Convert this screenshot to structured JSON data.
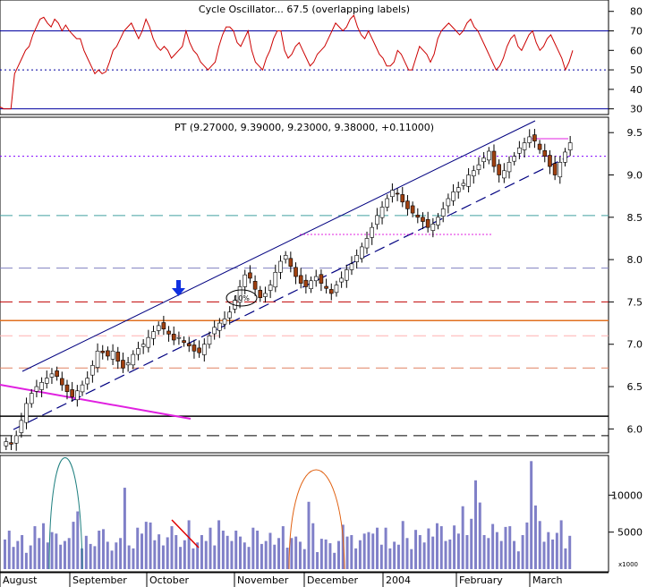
{
  "chart_data": [
    {
      "type": "line",
      "panel": "rsi",
      "title": "Cycle Oscillator... 67.5 (overlapping labels)",
      "yticks": [
        30,
        40,
        50,
        60,
        70,
        80
      ],
      "ylim": [
        28,
        84
      ],
      "reference_lines": [
        {
          "y": 70,
          "style": "solid",
          "color": "#0000a0"
        },
        {
          "y": 50,
          "style": "dotted",
          "color": "#0000a0"
        },
        {
          "y": 30,
          "style": "solid",
          "color": "#0000a0"
        }
      ],
      "series": [
        {
          "color": "#cc0000",
          "values": [
            31,
            30,
            30,
            30,
            48,
            52,
            56,
            60,
            62,
            68,
            72,
            76,
            77,
            74,
            72,
            76,
            74,
            70,
            73,
            70,
            68,
            66,
            66,
            60,
            56,
            52,
            48,
            50,
            48,
            49,
            54,
            60,
            62,
            66,
            70,
            72,
            74,
            70,
            66,
            70,
            76,
            72,
            66,
            62,
            60,
            62,
            60,
            56,
            58,
            60,
            62,
            70,
            64,
            60,
            58,
            54,
            52,
            50,
            52,
            54,
            62,
            68,
            72,
            72,
            70,
            64,
            62,
            66,
            70,
            60,
            54,
            52,
            50,
            56,
            60,
            66,
            70,
            70,
            60,
            56,
            58,
            62,
            64,
            60,
            56,
            52,
            54,
            58,
            60,
            62,
            66,
            70,
            74,
            72,
            70,
            72,
            76,
            78,
            72,
            68,
            66,
            70,
            66,
            62,
            58,
            56,
            52,
            52,
            54,
            60,
            58,
            54,
            50,
            50,
            56,
            62,
            60,
            58,
            54,
            58,
            66,
            70,
            72,
            74,
            72,
            70,
            68,
            70,
            74,
            76,
            72,
            70,
            66,
            62,
            58,
            54,
            50,
            52,
            56,
            62,
            66,
            68,
            62,
            60,
            64,
            68,
            70,
            64,
            60,
            62,
            66,
            68,
            64,
            60,
            56,
            50,
            54,
            60
          ]
        }
      ]
    },
    {
      "type": "candlestick",
      "panel": "price",
      "title": "PT (9.27000, 9.39000, 9.23000, 9.38000, +0.11000)",
      "yticks": [
        6.0,
        6.5,
        7.0,
        7.5,
        8.0,
        8.5,
        9.0,
        9.5
      ],
      "ylim": [
        5.75,
        9.65
      ],
      "close": [
        5.85,
        5.82,
        5.92,
        6.1,
        6.3,
        6.42,
        6.5,
        6.55,
        6.6,
        6.65,
        6.62,
        6.52,
        6.44,
        6.38,
        6.45,
        6.52,
        6.6,
        6.75,
        6.92,
        6.9,
        6.86,
        6.92,
        6.8,
        6.72,
        6.78,
        6.88,
        6.95,
        7.0,
        7.08,
        7.15,
        7.22,
        7.18,
        7.12,
        7.05,
        7.08,
        7.02,
        6.98,
        6.92,
        6.9,
        7.0,
        7.1,
        7.2,
        7.25,
        7.3,
        7.38,
        7.52,
        7.68,
        7.82,
        7.78,
        7.65,
        7.55,
        7.6,
        7.7,
        7.85,
        7.98,
        8.05,
        7.92,
        7.8,
        7.72,
        7.68,
        7.75,
        7.8,
        7.72,
        7.66,
        7.6,
        7.7,
        7.78,
        7.88,
        7.95,
        8.05,
        8.15,
        8.25,
        8.38,
        8.52,
        8.62,
        8.72,
        8.82,
        8.78,
        8.68,
        8.6,
        8.55,
        8.5,
        8.45,
        8.38,
        8.42,
        8.5,
        8.6,
        8.72,
        8.8,
        8.85,
        8.9,
        9.0,
        9.05,
        9.12,
        9.2,
        9.28,
        9.1,
        9.0,
        9.05,
        9.15,
        9.22,
        9.32,
        9.38,
        9.45,
        9.4,
        9.3,
        9.22,
        9.1,
        9.0,
        9.15,
        9.27,
        9.38
      ],
      "reference_lines": [
        {
          "y": 9.22,
          "style": "dotted",
          "color": "#8000ff"
        },
        {
          "y": 8.52,
          "style": "dashed",
          "color": "#40a0a0"
        },
        {
          "y": 7.9,
          "style": "dashed",
          "color": "#8080c0"
        },
        {
          "y": 7.5,
          "style": "dashed",
          "color": "#c00000"
        },
        {
          "y": 7.28,
          "style": "solid",
          "color": "#e07020"
        },
        {
          "y": 7.1,
          "style": "dashed",
          "color": "#ffb0b0"
        },
        {
          "y": 6.72,
          "style": "dashed",
          "color": "#e08060"
        },
        {
          "y": 6.15,
          "style": "solid",
          "color": "#000000"
        },
        {
          "y": 5.92,
          "style": "dashed",
          "color": "#000000"
        }
      ]
    },
    {
      "type": "bar",
      "panel": "volume",
      "yticks": [
        5000,
        10000
      ],
      "ylim": [
        0,
        15000
      ],
      "unit_label": "x1000",
      "values": [
        4000,
        5200,
        3000,
        3800,
        4600,
        2200,
        3200,
        5800,
        4200,
        6200,
        3600,
        5000,
        4800,
        3300,
        3800,
        4200,
        6400,
        7800,
        2800,
        4500,
        3400,
        3100,
        5200,
        5400,
        3700,
        2500,
        3600,
        4200,
        11000,
        3200,
        2800,
        5600,
        4800,
        6400,
        6300,
        3900,
        4700,
        3200,
        4300,
        5800,
        4600,
        3000,
        3900,
        6600,
        2800,
        3600,
        4600,
        3800,
        5600,
        3200,
        6600,
        5200,
        4500,
        3800,
        5200,
        4400,
        3600,
        3000,
        5600,
        5200,
        3400,
        3800,
        4900,
        3300,
        4200,
        5800,
        2900,
        4200,
        4400,
        3700,
        2700,
        9100,
        6200,
        2300,
        4100,
        4000,
        3500,
        2200,
        3800,
        6000,
        4400,
        4600,
        2800,
        3900,
        4800,
        5000,
        4800,
        5600,
        3300,
        5600,
        2800,
        3700,
        3300,
        6500,
        4200,
        2700,
        5300,
        4600,
        3600,
        5500,
        4400,
        6200,
        5800,
        3800,
        4000,
        5900,
        4800,
        8500,
        4600,
        6800,
        12000,
        9000,
        4600,
        4200,
        6100,
        5000,
        3800,
        5700,
        5800,
        3800,
        2400,
        4600,
        6300,
        14600,
        8600,
        6500,
        3700,
        5000,
        4000,
        4900,
        6600,
        2800,
        4500
      ],
      "month_labels": [
        "August",
        "September",
        "October",
        "November",
        "December",
        "2004",
        "February",
        "March"
      ]
    }
  ],
  "colors": {
    "oscillator": "#cc0000",
    "candle_up": "#ffffff",
    "candle_down": "#a04010",
    "volume": "#8080c8",
    "channel": "#000080",
    "magenta": "#e020e0"
  },
  "annotations": {
    "circle_label": "10%"
  }
}
